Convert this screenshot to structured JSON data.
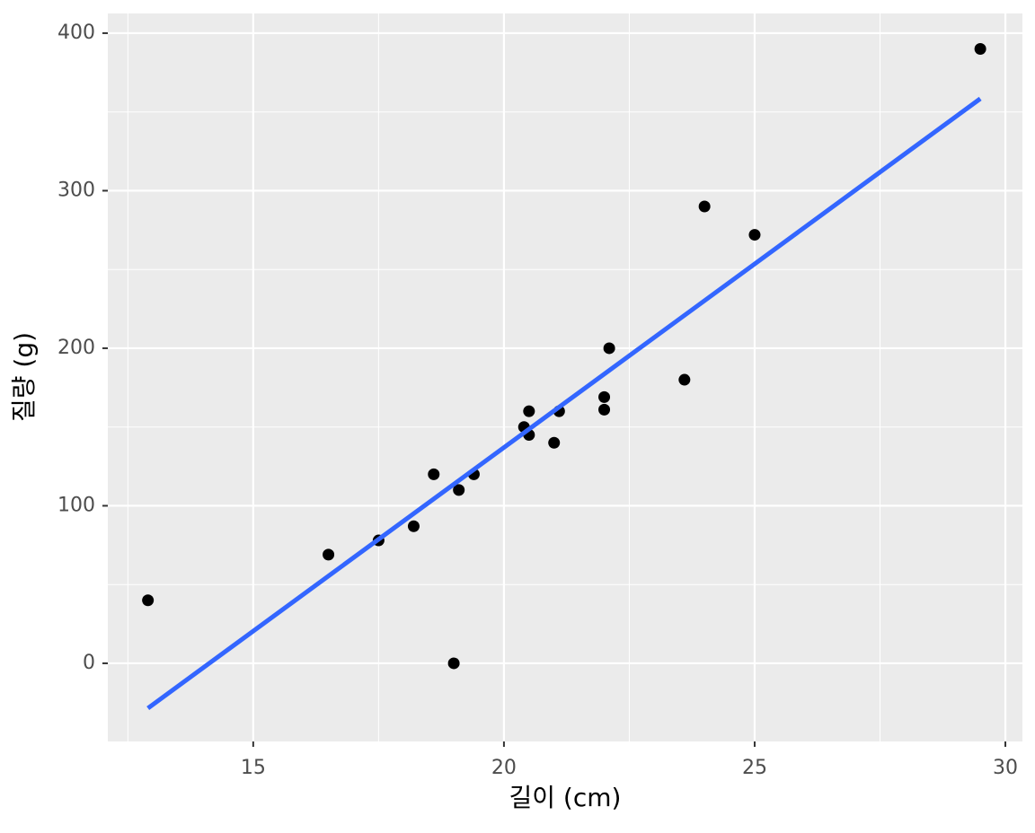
{
  "chart_data": {
    "type": "scatter",
    "x_label": "길이 (cm)",
    "y_label": "질량 (g)",
    "x": [
      12.9,
      16.5,
      17.5,
      18.2,
      18.6,
      19.1,
      19.4,
      19.0,
      20.4,
      20.5,
      20.5,
      21.0,
      21.1,
      22.0,
      22.0,
      22.1,
      23.6,
      24.0,
      25.0,
      29.5
    ],
    "values": [
      40,
      69,
      78,
      87,
      120,
      110,
      120,
      0,
      150,
      160,
      145,
      140,
      160,
      169,
      161,
      200,
      180,
      290,
      272,
      390
    ],
    "color": "#000000",
    "fit": {
      "x": [
        12.9,
        29.5
      ],
      "values": [
        -28.5,
        358.4
      ],
      "color": "#3366ff"
    },
    "xlim": [
      12.1,
      30.34
    ],
    "ylim": [
      -49.6,
      412.5
    ],
    "xticks": [
      15,
      20,
      25,
      30
    ],
    "yticks": [
      0,
      100,
      200,
      300,
      400
    ],
    "minor_xticks": [
      12.5,
      17.5,
      22.5,
      27.5
    ],
    "minor_yticks": [
      50,
      150,
      250,
      350
    ],
    "grid": true
  }
}
